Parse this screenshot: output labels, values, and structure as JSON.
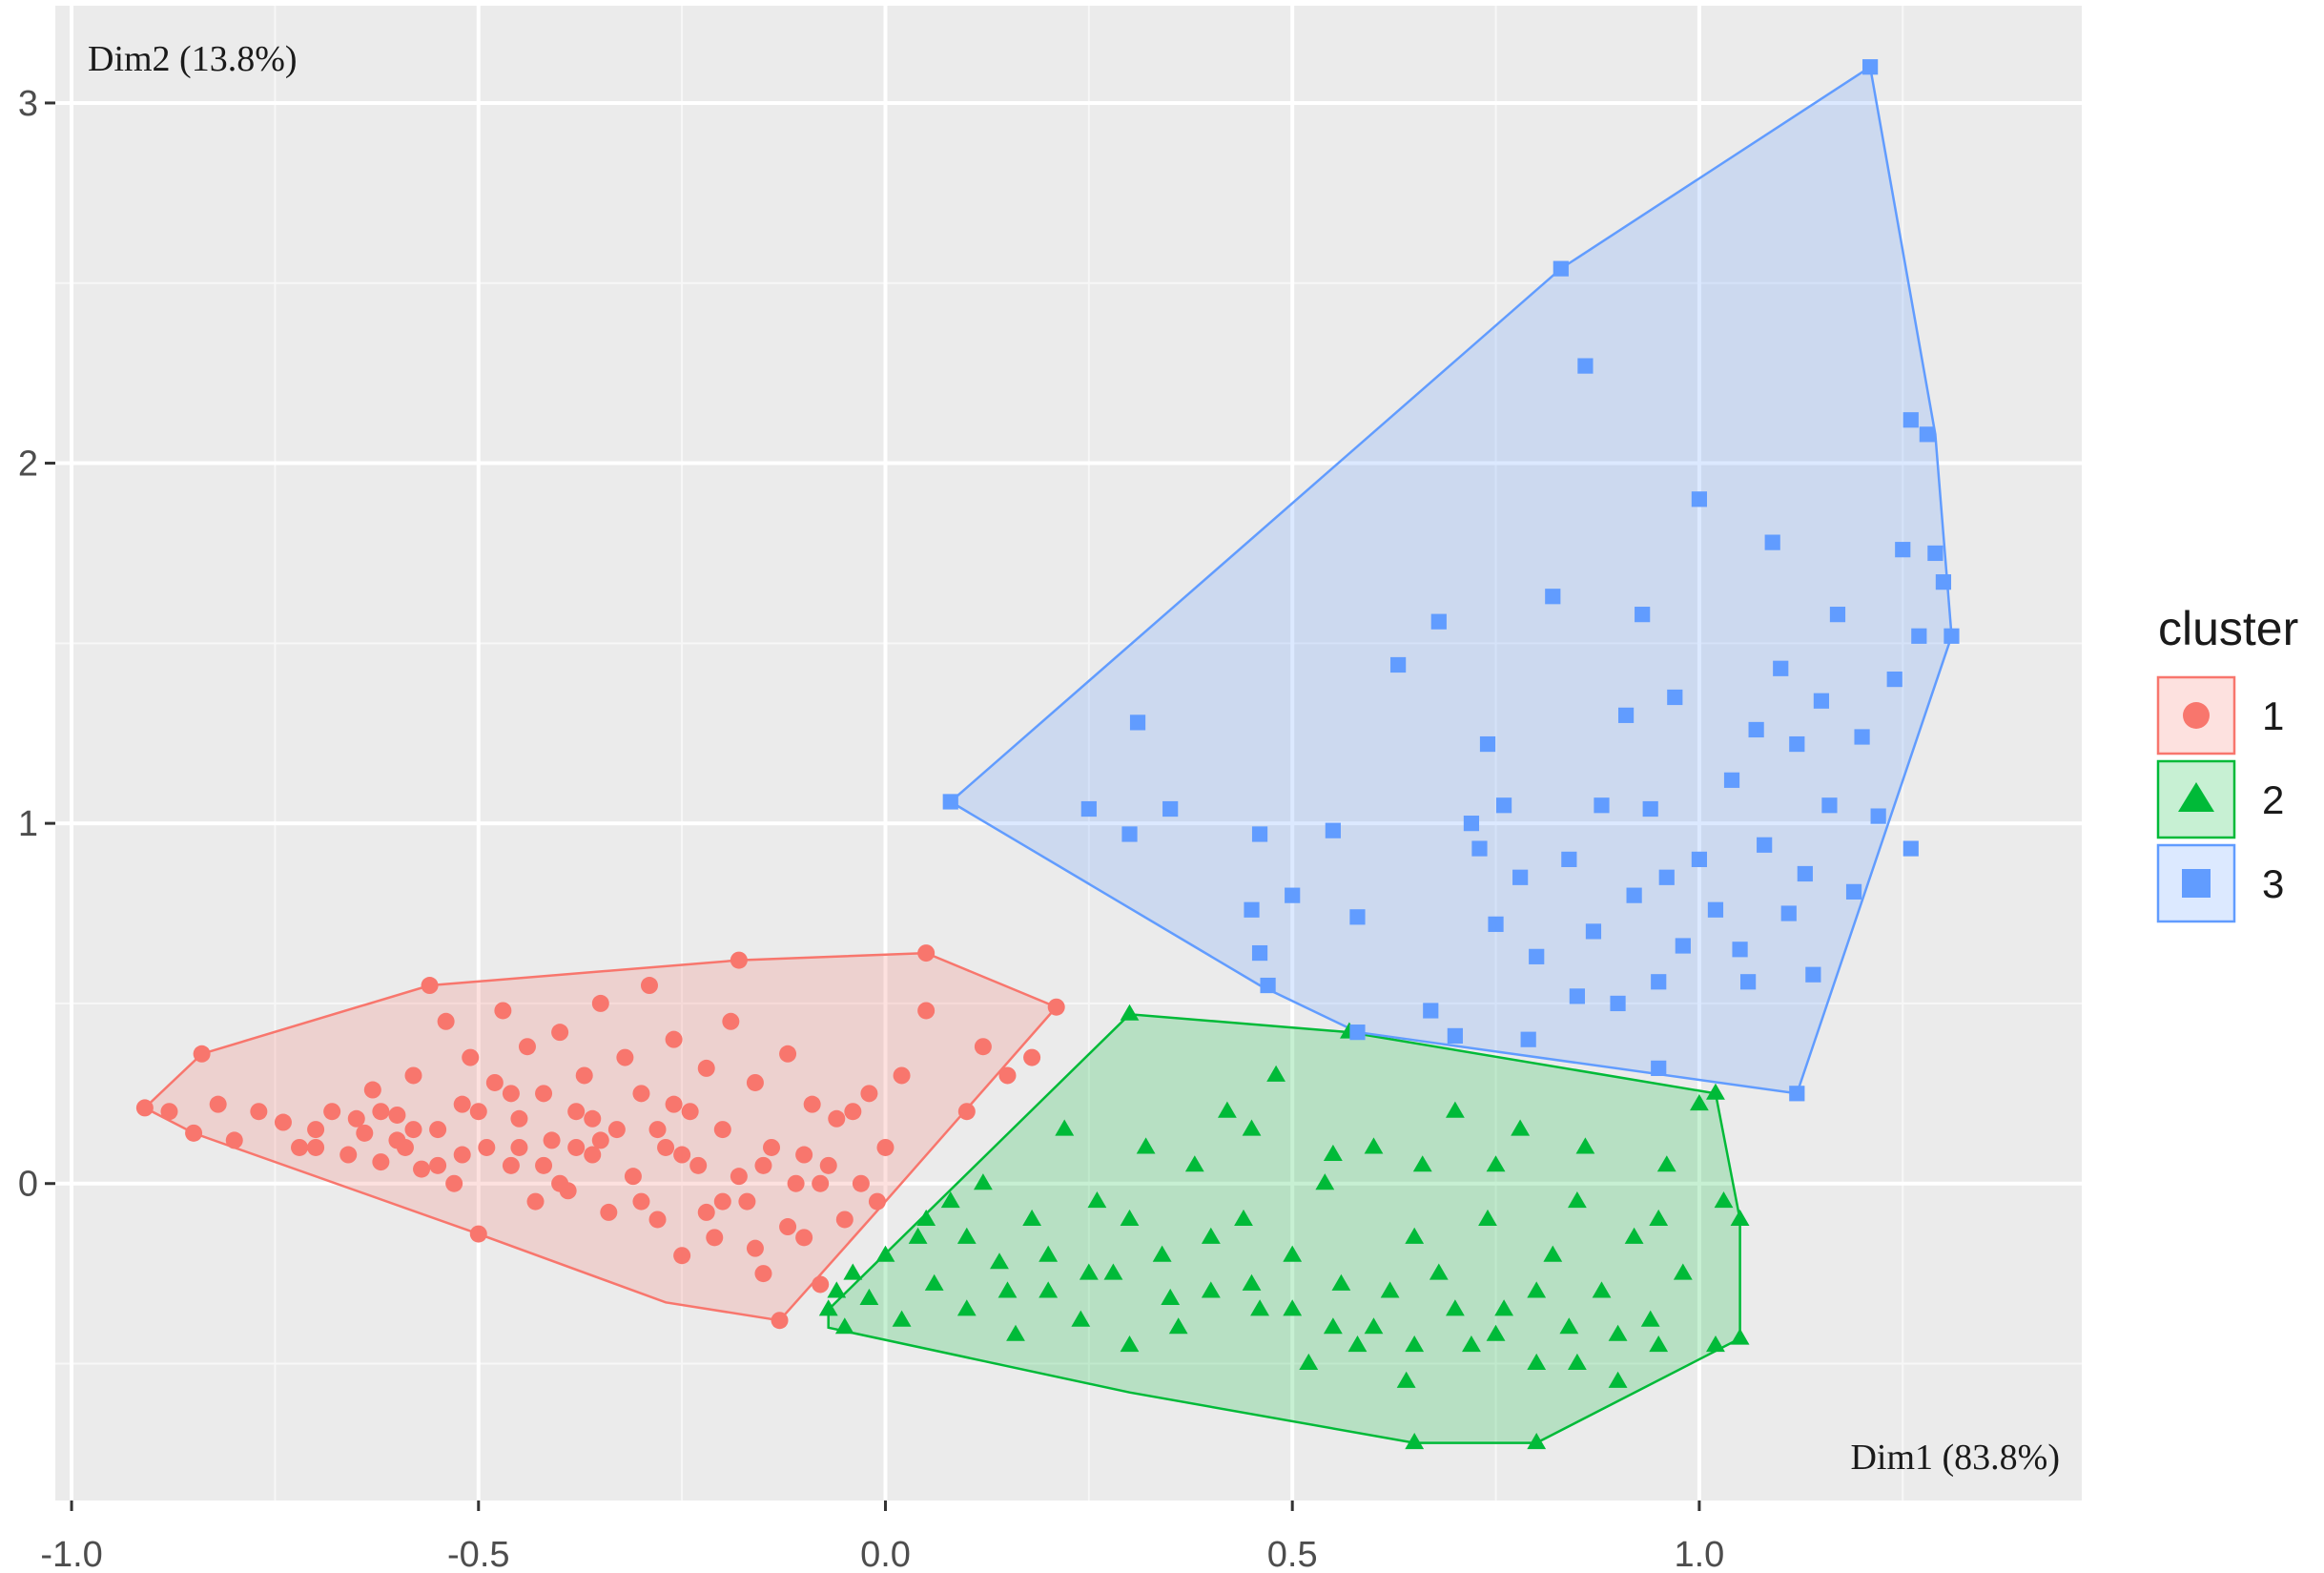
{
  "chart_data": {
    "type": "scatter",
    "title": "",
    "xlabel": "Dim1 (83.8%)",
    "ylabel": "Dim2 (13.8%)",
    "xlim": [
      -1.02,
      1.47
    ],
    "ylim": [
      -0.88,
      3.27
    ],
    "x_ticks": [
      -1.0,
      -0.5,
      0.0,
      0.5,
      1.0
    ],
    "x_tick_labels": [
      "-1.0",
      "-0.5",
      "0.0",
      "0.5",
      "1.0"
    ],
    "y_ticks": [
      0,
      1,
      2,
      3
    ],
    "y_tick_labels": [
      "0",
      "1",
      "2",
      "3"
    ],
    "grid": true,
    "panel_background": "#ebebeb",
    "legend": {
      "title": "cluster",
      "position": "right",
      "items": [
        {
          "label": "1",
          "color": "#F8766D",
          "shape": "circle"
        },
        {
          "label": "2",
          "color": "#00BA38",
          "shape": "triangle"
        },
        {
          "label": "3",
          "color": "#619CFF",
          "shape": "square"
        }
      ]
    },
    "series": [
      {
        "name": "1",
        "color": "#F8766D",
        "shape": "circle",
        "hull": [
          [
            -0.91,
            0.21
          ],
          [
            -0.84,
            0.36
          ],
          [
            -0.56,
            0.55
          ],
          [
            -0.18,
            0.62
          ],
          [
            0.05,
            0.64
          ],
          [
            0.21,
            0.49
          ],
          [
            0.0,
            -0.05
          ],
          [
            -0.13,
            -0.38
          ],
          [
            -0.27,
            -0.33
          ],
          [
            -0.5,
            -0.14
          ],
          [
            -0.85,
            0.14
          ]
        ],
        "points": [
          [
            -0.91,
            0.21
          ],
          [
            -0.88,
            0.2
          ],
          [
            -0.84,
            0.36
          ],
          [
            -0.82,
            0.22
          ],
          [
            -0.85,
            0.14
          ],
          [
            -0.8,
            0.12
          ],
          [
            -0.77,
            0.2
          ],
          [
            -0.74,
            0.17
          ],
          [
            -0.72,
            0.1
          ],
          [
            -0.7,
            0.15
          ],
          [
            -0.68,
            0.2
          ],
          [
            -0.66,
            0.08
          ],
          [
            -0.64,
            0.14
          ],
          [
            -0.63,
            0.26
          ],
          [
            -0.62,
            0.06
          ],
          [
            -0.6,
            0.19
          ],
          [
            -0.59,
            0.1
          ],
          [
            -0.58,
            0.3
          ],
          [
            -0.57,
            0.04
          ],
          [
            -0.56,
            0.55
          ],
          [
            -0.55,
            0.15
          ],
          [
            -0.54,
            0.45
          ],
          [
            -0.53,
            0.0
          ],
          [
            -0.52,
            0.22
          ],
          [
            -0.51,
            0.35
          ],
          [
            -0.5,
            -0.14
          ],
          [
            -0.49,
            0.1
          ],
          [
            -0.48,
            0.28
          ],
          [
            -0.47,
            0.48
          ],
          [
            -0.46,
            0.05
          ],
          [
            -0.45,
            0.18
          ],
          [
            -0.44,
            0.38
          ],
          [
            -0.43,
            -0.05
          ],
          [
            -0.42,
            0.25
          ],
          [
            -0.41,
            0.12
          ],
          [
            -0.4,
            0.42
          ],
          [
            -0.39,
            -0.02
          ],
          [
            -0.38,
            0.2
          ],
          [
            -0.37,
            0.3
          ],
          [
            -0.36,
            0.08
          ],
          [
            -0.35,
            0.5
          ],
          [
            -0.34,
            -0.08
          ],
          [
            -0.33,
            0.15
          ],
          [
            -0.32,
            0.35
          ],
          [
            -0.31,
            0.02
          ],
          [
            -0.3,
            0.25
          ],
          [
            -0.29,
            0.55
          ],
          [
            -0.28,
            -0.1
          ],
          [
            -0.27,
            0.1
          ],
          [
            -0.26,
            0.4
          ],
          [
            -0.25,
            -0.2
          ],
          [
            -0.24,
            0.2
          ],
          [
            -0.23,
            0.05
          ],
          [
            -0.22,
            0.32
          ],
          [
            -0.21,
            -0.15
          ],
          [
            -0.2,
            0.15
          ],
          [
            -0.19,
            0.45
          ],
          [
            -0.18,
            0.62
          ],
          [
            -0.17,
            -0.05
          ],
          [
            -0.16,
            0.28
          ],
          [
            -0.15,
            -0.25
          ],
          [
            -0.14,
            0.1
          ],
          [
            -0.13,
            -0.38
          ],
          [
            -0.12,
            0.36
          ],
          [
            -0.11,
            0.0
          ],
          [
            -0.1,
            -0.15
          ],
          [
            -0.09,
            0.22
          ],
          [
            -0.08,
            -0.28
          ],
          [
            -0.07,
            0.05
          ],
          [
            -0.06,
            0.18
          ],
          [
            -0.05,
            -0.1
          ],
          [
            -0.04,
            0.2
          ],
          [
            -0.03,
            0.0
          ],
          [
            -0.02,
            0.25
          ],
          [
            -0.01,
            -0.05
          ],
          [
            0.0,
            0.1
          ],
          [
            0.02,
            0.3
          ],
          [
            0.05,
            0.64
          ],
          [
            0.05,
            0.48
          ],
          [
            0.1,
            0.2
          ],
          [
            0.12,
            0.38
          ],
          [
            0.15,
            0.3
          ],
          [
            0.18,
            0.35
          ],
          [
            0.21,
            0.49
          ],
          [
            -0.6,
            0.12
          ],
          [
            -0.55,
            0.05
          ],
          [
            -0.45,
            0.1
          ],
          [
            -0.4,
            0.0
          ],
          [
            -0.35,
            0.12
          ],
          [
            -0.3,
            -0.05
          ],
          [
            -0.25,
            0.08
          ],
          [
            -0.2,
            -0.05
          ],
          [
            -0.15,
            0.05
          ],
          [
            -0.1,
            0.08
          ],
          [
            -0.65,
            0.18
          ],
          [
            -0.58,
            0.15
          ],
          [
            -0.5,
            0.2
          ],
          [
            -0.42,
            0.05
          ],
          [
            -0.38,
            0.1
          ],
          [
            -0.28,
            0.15
          ],
          [
            -0.22,
            -0.08
          ],
          [
            -0.18,
            0.02
          ],
          [
            -0.12,
            -0.12
          ],
          [
            -0.7,
            0.1
          ],
          [
            -0.62,
            0.2
          ],
          [
            -0.52,
            0.08
          ],
          [
            -0.46,
            0.25
          ],
          [
            -0.36,
            0.18
          ],
          [
            -0.26,
            0.22
          ],
          [
            -0.16,
            -0.18
          ],
          [
            -0.08,
            0.0
          ]
        ]
      },
      {
        "name": "2",
        "color": "#00BA38",
        "shape": "triangle",
        "hull": [
          [
            -0.07,
            -0.35
          ],
          [
            0.3,
            0.47
          ],
          [
            0.57,
            0.42
          ],
          [
            1.02,
            0.25
          ],
          [
            1.05,
            -0.1
          ],
          [
            1.05,
            -0.43
          ],
          [
            0.8,
            -0.72
          ],
          [
            0.65,
            -0.72
          ],
          [
            0.3,
            -0.58
          ],
          [
            -0.07,
            -0.4
          ]
        ],
        "points": [
          [
            -0.07,
            -0.35
          ],
          [
            -0.06,
            -0.3
          ],
          [
            -0.05,
            -0.4
          ],
          [
            -0.04,
            -0.25
          ],
          [
            -0.02,
            -0.32
          ],
          [
            0.0,
            -0.2
          ],
          [
            0.02,
            -0.38
          ],
          [
            0.04,
            -0.15
          ],
          [
            0.06,
            -0.28
          ],
          [
            0.08,
            -0.05
          ],
          [
            0.1,
            -0.35
          ],
          [
            0.12,
            0.0
          ],
          [
            0.14,
            -0.22
          ],
          [
            0.16,
            -0.42
          ],
          [
            0.18,
            -0.1
          ],
          [
            0.2,
            -0.3
          ],
          [
            0.22,
            0.15
          ],
          [
            0.24,
            -0.38
          ],
          [
            0.26,
            -0.05
          ],
          [
            0.28,
            -0.25
          ],
          [
            0.3,
            0.47
          ],
          [
            0.3,
            -0.45
          ],
          [
            0.32,
            0.1
          ],
          [
            0.34,
            -0.2
          ],
          [
            0.36,
            -0.4
          ],
          [
            0.38,
            0.05
          ],
          [
            0.4,
            -0.3
          ],
          [
            0.42,
            0.2
          ],
          [
            0.44,
            -0.1
          ],
          [
            0.46,
            -0.35
          ],
          [
            0.48,
            0.3
          ],
          [
            0.5,
            -0.2
          ],
          [
            0.52,
            -0.5
          ],
          [
            0.54,
            0.0
          ],
          [
            0.56,
            -0.28
          ],
          [
            0.57,
            0.42
          ],
          [
            0.58,
            -0.45
          ],
          [
            0.6,
            0.1
          ],
          [
            0.62,
            -0.3
          ],
          [
            0.64,
            -0.55
          ],
          [
            0.65,
            -0.72
          ],
          [
            0.66,
            0.05
          ],
          [
            0.68,
            -0.25
          ],
          [
            0.7,
            0.2
          ],
          [
            0.72,
            -0.45
          ],
          [
            0.74,
            -0.1
          ],
          [
            0.76,
            -0.35
          ],
          [
            0.78,
            0.15
          ],
          [
            0.8,
            -0.72
          ],
          [
            0.8,
            -0.5
          ],
          [
            0.82,
            -0.2
          ],
          [
            0.84,
            -0.4
          ],
          [
            0.86,
            0.1
          ],
          [
            0.88,
            -0.3
          ],
          [
            0.9,
            -0.55
          ],
          [
            0.92,
            -0.15
          ],
          [
            0.94,
            -0.38
          ],
          [
            0.96,
            0.05
          ],
          [
            0.98,
            -0.25
          ],
          [
            1.0,
            0.22
          ],
          [
            1.02,
            0.25
          ],
          [
            1.02,
            -0.45
          ],
          [
            1.03,
            -0.05
          ],
          [
            1.05,
            -0.1
          ],
          [
            1.05,
            -0.43
          ],
          [
            0.1,
            -0.15
          ],
          [
            0.2,
            -0.2
          ],
          [
            0.3,
            -0.1
          ],
          [
            0.4,
            -0.15
          ],
          [
            0.5,
            -0.35
          ],
          [
            0.6,
            -0.4
          ],
          [
            0.7,
            -0.35
          ],
          [
            0.8,
            -0.3
          ],
          [
            0.9,
            -0.42
          ],
          [
            0.15,
            -0.3
          ],
          [
            0.25,
            -0.25
          ],
          [
            0.35,
            -0.32
          ],
          [
            0.45,
            -0.28
          ],
          [
            0.55,
            -0.4
          ],
          [
            0.65,
            -0.45
          ],
          [
            0.75,
            -0.42
          ],
          [
            0.85,
            -0.5
          ],
          [
            0.95,
            -0.45
          ],
          [
            0.05,
            -0.1
          ],
          [
            0.45,
            0.15
          ],
          [
            0.55,
            0.08
          ],
          [
            0.65,
            -0.15
          ],
          [
            0.75,
            0.05
          ],
          [
            0.85,
            -0.05
          ],
          [
            0.95,
            -0.1
          ]
        ]
      },
      {
        "name": "3",
        "color": "#619CFF",
        "shape": "square",
        "hull": [
          [
            0.08,
            1.06
          ],
          [
            0.83,
            2.54
          ],
          [
            1.21,
            3.1
          ],
          [
            1.29,
            2.08
          ],
          [
            1.31,
            1.52
          ],
          [
            1.12,
            0.25
          ],
          [
            0.58,
            0.42
          ],
          [
            0.46,
            0.55
          ]
        ],
        "points": [
          [
            0.08,
            1.06
          ],
          [
            0.25,
            1.04
          ],
          [
            0.3,
            0.97
          ],
          [
            0.31,
            1.28
          ],
          [
            0.35,
            1.04
          ],
          [
            0.45,
            0.76
          ],
          [
            0.46,
            0.97
          ],
          [
            0.46,
            0.64
          ],
          [
            0.47,
            0.55
          ],
          [
            0.5,
            0.8
          ],
          [
            0.55,
            0.98
          ],
          [
            0.58,
            0.42
          ],
          [
            0.58,
            0.74
          ],
          [
            0.63,
            1.44
          ],
          [
            0.67,
            0.48
          ],
          [
            0.68,
            1.56
          ],
          [
            0.7,
            0.41
          ],
          [
            0.72,
            1.0
          ],
          [
            0.73,
            0.93
          ],
          [
            0.74,
            1.22
          ],
          [
            0.75,
            0.72
          ],
          [
            0.76,
            1.05
          ],
          [
            0.78,
            0.85
          ],
          [
            0.79,
            0.4
          ],
          [
            0.8,
            0.63
          ],
          [
            0.82,
            1.63
          ],
          [
            0.83,
            2.54
          ],
          [
            0.84,
            0.9
          ],
          [
            0.86,
            2.27
          ],
          [
            0.87,
            0.7
          ],
          [
            0.88,
            1.05
          ],
          [
            0.9,
            0.5
          ],
          [
            0.91,
            1.3
          ],
          [
            0.92,
            0.8
          ],
          [
            0.93,
            1.58
          ],
          [
            0.94,
            1.04
          ],
          [
            0.95,
            0.56
          ],
          [
            0.96,
            0.85
          ],
          [
            0.97,
            1.35
          ],
          [
            0.98,
            0.66
          ],
          [
            1.0,
            1.9
          ],
          [
            1.0,
            0.9
          ],
          [
            1.02,
            0.76
          ],
          [
            1.04,
            1.12
          ],
          [
            1.06,
            0.56
          ],
          [
            1.07,
            1.26
          ],
          [
            1.08,
            0.94
          ],
          [
            1.09,
            1.78
          ],
          [
            1.1,
            1.43
          ],
          [
            1.11,
            0.75
          ],
          [
            1.12,
            0.25
          ],
          [
            1.12,
            1.22
          ],
          [
            1.13,
            0.86
          ],
          [
            1.15,
            1.34
          ],
          [
            1.17,
            1.58
          ],
          [
            1.19,
            0.81
          ],
          [
            1.2,
            1.24
          ],
          [
            1.21,
            3.1
          ],
          [
            1.22,
            1.02
          ],
          [
            1.24,
            1.4
          ],
          [
            1.25,
            1.76
          ],
          [
            1.26,
            0.93
          ],
          [
            1.27,
            1.52
          ],
          [
            1.28,
            2.08
          ],
          [
            1.29,
            1.75
          ],
          [
            1.31,
            1.52
          ],
          [
            1.3,
            1.67
          ],
          [
            1.26,
            2.12
          ],
          [
            1.05,
            0.65
          ],
          [
            0.95,
            0.32
          ],
          [
            0.85,
            0.52
          ],
          [
            1.16,
            1.05
          ],
          [
            1.14,
            0.58
          ]
        ]
      }
    ]
  }
}
